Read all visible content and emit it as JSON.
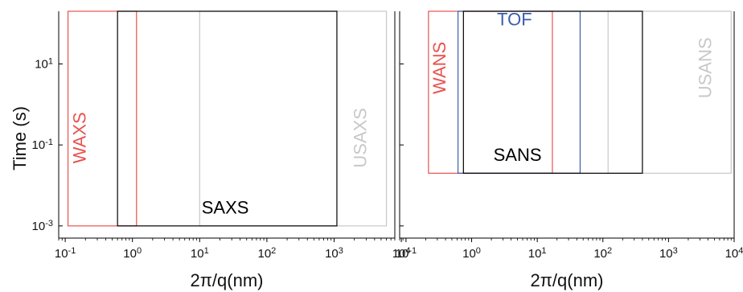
{
  "chart_data": {
    "type": "box-range",
    "ylabel": "Time (s)",
    "y_scale": "log",
    "y_ticks": [
      {
        "value": 10,
        "base": "10",
        "exp": "1"
      },
      {
        "value": 0.1,
        "base": "10",
        "exp": "-1"
      },
      {
        "value": 0.001,
        "base": "10",
        "exp": "-3"
      }
    ],
    "x_scale": "log",
    "panels": [
      {
        "id": "xray",
        "xlabel": "2π/q(nm)",
        "xlim": [
          0.08,
          8000
        ],
        "ylim": [
          0.0005,
          200
        ],
        "x_ticks": [
          {
            "value": 0.1,
            "base": "10",
            "exp": "-1"
          },
          {
            "value": 1,
            "base": "10",
            "exp": "0"
          },
          {
            "value": 10,
            "base": "10",
            "exp": "1"
          },
          {
            "value": 100,
            "base": "10",
            "exp": "2"
          },
          {
            "value": 1000,
            "base": "10",
            "exp": "3"
          },
          {
            "value": 10000,
            "base": "10",
            "exp": "4"
          }
        ],
        "ranges": [
          {
            "name": "WAXS",
            "color": "#e8534f",
            "x": [
              0.11,
              1.15
            ],
            "y": [
              0.001,
              200
            ],
            "label_x": 0.2,
            "label_y": 0.15,
            "label_rotate": true
          },
          {
            "name": "SAXS",
            "color": "#000000",
            "x": [
              0.6,
              1100
            ],
            "y": [
              0.001,
              200
            ],
            "label_x": 24,
            "label_y": 0.002,
            "label_rotate": false
          },
          {
            "name": "USAXS",
            "color": "#c8c8c8",
            "x": [
              10,
              6000
            ],
            "y": [
              0.001,
              200
            ],
            "label_x": 3000,
            "label_y": 0.15,
            "label_rotate": true
          }
        ]
      },
      {
        "id": "neutron",
        "xlabel": "2π/q(nm)",
        "xlim": [
          0.08,
          10000
        ],
        "ylim": [
          0.0005,
          200
        ],
        "x_ticks": [
          {
            "value": 0.1,
            "base": "10",
            "exp": "-1"
          },
          {
            "value": 1,
            "base": "10",
            "exp": "0"
          },
          {
            "value": 10,
            "base": "10",
            "exp": "1"
          },
          {
            "value": 100,
            "base": "10",
            "exp": "2"
          },
          {
            "value": 1000,
            "base": "10",
            "exp": "3"
          },
          {
            "value": 10000,
            "base": "10",
            "exp": "4"
          }
        ],
        "ranges": [
          {
            "name": "WANS",
            "color": "#e8534f",
            "x": [
              0.22,
              17
            ],
            "y": [
              0.02,
              200
            ],
            "label_x": 0.4,
            "label_y": 8,
            "label_rotate": true
          },
          {
            "name": "TOF",
            "color": "#3a5ea8",
            "x": [
              0.62,
              45
            ],
            "y": [
              0.02,
              200
            ],
            "label_x": 4.5,
            "label_y": 90,
            "label_rotate": false
          },
          {
            "name": "SANS",
            "color": "#000000",
            "x": [
              0.75,
              400
            ],
            "y": [
              0.02,
              200
            ],
            "label_x": 5,
            "label_y": 0.04,
            "label_rotate": false
          },
          {
            "name": "USANS",
            "color": "#c8c8c8",
            "x": [
              120,
              9000
            ],
            "y": [
              0.02,
              200
            ],
            "label_x": 4500,
            "label_y": 8,
            "label_rotate": true
          }
        ]
      }
    ]
  }
}
